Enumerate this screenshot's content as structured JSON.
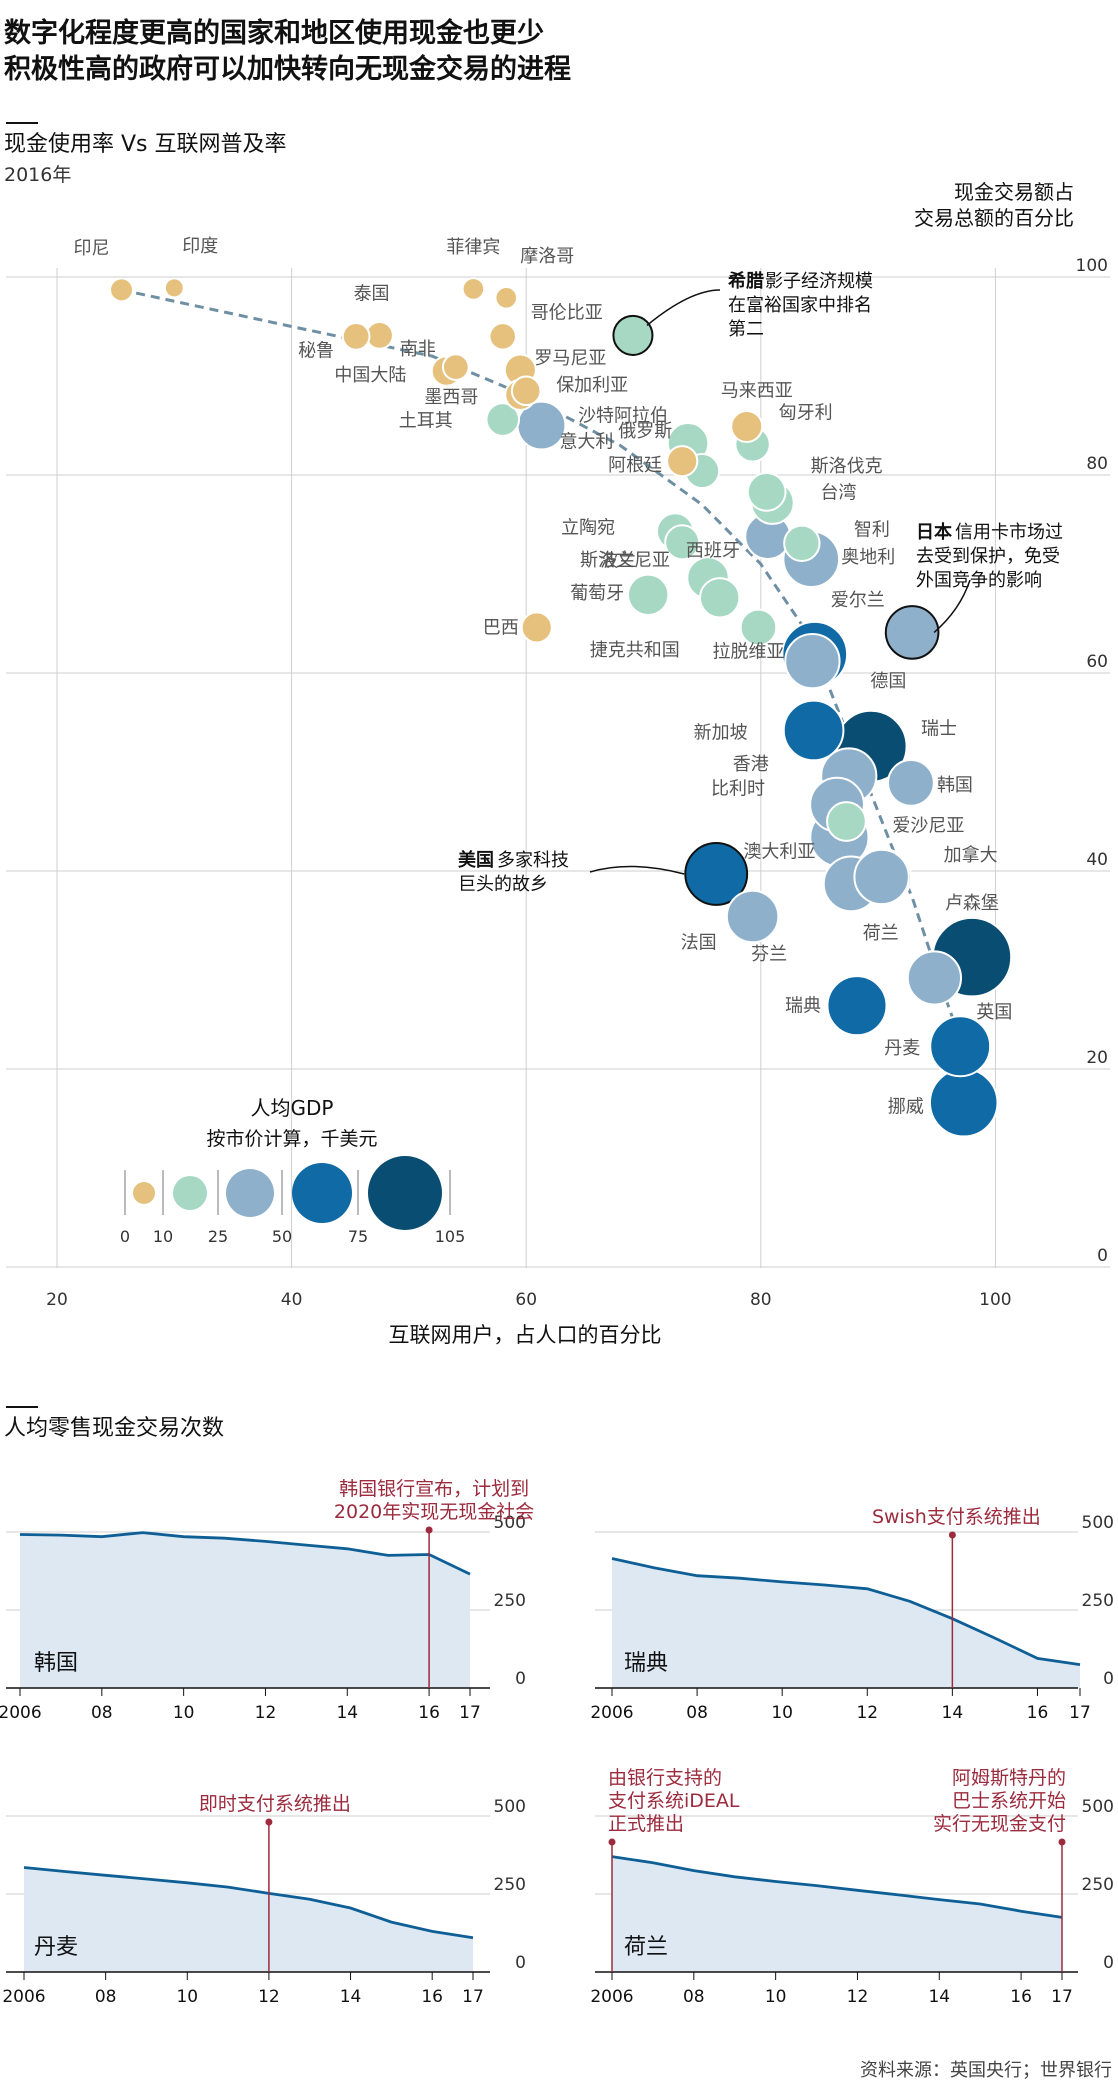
{
  "title_line1": "数字化程度更高的国家和地区使用现金也更少",
  "title_line2": "积极性高的政府可以加快转向无现金交易的进程",
  "source": "资料来源：英国央行；世界银行",
  "scatter": {
    "subtitle": "现金使用率 Vs 互联网普及率",
    "year": "2016年",
    "ylabel_line1": "现金交易额占",
    "ylabel_line2": "交易总额的百分比",
    "xlabel": "互联网用户，占人口的百分比",
    "legend_title": "人均GDP",
    "legend_sub": "按市价计算，千美元",
    "legend_ticks": [
      "0",
      "10",
      "25",
      "50",
      "75",
      "105"
    ],
    "annotations": [
      {
        "bold": "希腊",
        "lines": [
          "影子经济规模",
          "在富裕国家中排名",
          "第二"
        ]
      },
      {
        "bold": "日本",
        "lines": [
          "信用卡市场过",
          "去受到保护，免受",
          "外国竞争的影响"
        ]
      },
      {
        "bold": "美国",
        "lines": [
          "多家科技",
          "巨头的故乡"
        ]
      }
    ]
  },
  "chart_data": [
    {
      "type": "scatter",
      "xlim": [
        15,
        108
      ],
      "ylim": [
        0,
        100
      ],
      "x_ticks": [
        20,
        40,
        60,
        80,
        100
      ],
      "y_ticks": [
        0,
        20,
        40,
        60,
        80,
        100
      ],
      "grid": "horizontal",
      "size_variable": "人均GDP，千美元",
      "trend_line": [
        [
          25.5,
          98.7
        ],
        [
          40,
          95
        ],
        [
          52,
          92
        ],
        [
          60,
          88
        ],
        [
          68,
          83
        ],
        [
          75,
          77
        ],
        [
          80,
          71
        ],
        [
          84,
          64
        ],
        [
          87,
          55
        ],
        [
          90,
          46
        ],
        [
          93,
          37
        ],
        [
          95.5,
          28
        ],
        [
          97.3,
          22
        ]
      ],
      "points": [
        {
          "label": "印尼",
          "x": 25.5,
          "y": 98.7,
          "gdp": 3.6
        },
        {
          "label": "印度",
          "x": 30,
          "y": 98.9,
          "gdp": 1.7
        },
        {
          "label": "菲律宾",
          "x": 55.5,
          "y": 98.8,
          "gdp": 2.9
        },
        {
          "label": "摩洛哥",
          "x": 58.3,
          "y": 97.9,
          "gdp": 2.9
        },
        {
          "label": "泰国",
          "x": 47.5,
          "y": 94.1,
          "gdp": 6
        },
        {
          "label": "哥伦比亚",
          "x": 58,
          "y": 94,
          "gdp": 5.8
        },
        {
          "label": "秘鲁",
          "x": 45.5,
          "y": 94,
          "gdp": 6
        },
        {
          "label": "南非",
          "x": 54,
          "y": 90.9,
          "gdp": 5.3
        },
        {
          "label": "中国大陆",
          "x": 53.2,
          "y": 90.5,
          "gdp": 8.1
        },
        {
          "label": "罗马尼亚",
          "x": 59.5,
          "y": 90.6,
          "gdp": 9.5
        },
        {
          "label": "墨西哥",
          "x": 59.5,
          "y": 88.1,
          "gdp": 8.7
        },
        {
          "label": "保加利亚",
          "x": 60,
          "y": 88.5,
          "gdp": 7.4
        },
        {
          "label": "土耳其",
          "x": 58,
          "y": 85.6,
          "gdp": 10.9
        },
        {
          "label": "意大利",
          "x": 61.3,
          "y": 85,
          "gdp": 30.7
        },
        {
          "label": "马来西亚",
          "x": 78.8,
          "y": 84.9,
          "gdp": 9.5
        },
        {
          "label": "沙特阿拉伯",
          "x": 73.8,
          "y": 83.2,
          "gdp": 20
        },
        {
          "label": "匈牙利",
          "x": 79.3,
          "y": 83.1,
          "gdp": 12.8
        },
        {
          "label": "俄罗斯",
          "x": 73.3,
          "y": 81.4,
          "gdp": 8.7
        },
        {
          "label": "阿根廷",
          "x": 75,
          "y": 80.4,
          "gdp": 12.4
        },
        {
          "label": "斯洛伐克",
          "x": 80.5,
          "y": 78.3,
          "gdp": 16.5
        },
        {
          "label": "台湾",
          "x": 81,
          "y": 77.2,
          "gdp": 22.5
        },
        {
          "label": "智利",
          "x": 83.5,
          "y": 73.1,
          "gdp": 13.8
        },
        {
          "label": "立陶宛",
          "x": 72.7,
          "y": 74.3,
          "gdp": 14.9
        },
        {
          "label": "波兰",
          "x": 73.3,
          "y": 73.2,
          "gdp": 12.4
        },
        {
          "label": "西班牙",
          "x": 80.6,
          "y": 73.8,
          "gdp": 26.6
        },
        {
          "label": "奥地利",
          "x": 84.3,
          "y": 71.5,
          "gdp": 44.7
        },
        {
          "label": "斯洛文尼亚",
          "x": 75.5,
          "y": 69.6,
          "gdp": 21.3
        },
        {
          "label": "葡萄牙",
          "x": 70.4,
          "y": 67.9,
          "gdp": 19.8
        },
        {
          "label": "捷克共和国",
          "x": 76.5,
          "y": 67.6,
          "gdp": 18.5
        },
        {
          "label": "拉脱维亚",
          "x": 79.8,
          "y": 64.6,
          "gdp": 14.1
        },
        {
          "label": "巴西",
          "x": 60.9,
          "y": 64.6,
          "gdp": 8.7
        },
        {
          "label": "爱尔兰",
          "x": 84.6,
          "y": 61.9,
          "gdp": 64.2
        },
        {
          "label": "德国",
          "x": 84.4,
          "y": 61.2,
          "gdp": 42.1
        },
        {
          "label": "瑞士",
          "x": 89.4,
          "y": 52.6,
          "gdp": 79.9
        },
        {
          "label": "新加坡",
          "x": 84.5,
          "y": 54.2,
          "gdp": 52.9
        },
        {
          "label": "香港",
          "x": 87.5,
          "y": 49.6,
          "gdp": 43.7
        },
        {
          "label": "韩国",
          "x": 92.8,
          "y": 48.9,
          "gdp": 27.5
        },
        {
          "label": "比利时",
          "x": 86.5,
          "y": 46.7,
          "gdp": 41.1
        },
        {
          "label": "爱沙尼亚",
          "x": 87.3,
          "y": 45,
          "gdp": 17.7
        },
        {
          "label": "澳大利亚",
          "x": 86.7,
          "y": 43.4,
          "gdp": 49.8
        },
        {
          "label": "加拿大",
          "x": 90.3,
          "y": 39.4,
          "gdp": 42.2
        },
        {
          "label": "荷兰",
          "x": 90.4,
          "y": 39.4,
          "gdp": 45.6
        },
        {
          "label": "芬兰",
          "x": 87.7,
          "y": 38.7,
          "gdp": 43
        },
        {
          "label": "法国",
          "x": 79.3,
          "y": 35.4,
          "gdp": 36.9
        },
        {
          "label": "卢森堡",
          "x": 98,
          "y": 31.3,
          "gdp": 100.7
        },
        {
          "label": "英国",
          "x": 94.8,
          "y": 29.2,
          "gdp": 40
        },
        {
          "label": "瑞典",
          "x": 88.2,
          "y": 26.4,
          "gdp": 51.6
        },
        {
          "label": "丹麦",
          "x": 97,
          "y": 22.3,
          "gdp": 53.4
        },
        {
          "label": "挪威",
          "x": 97.3,
          "y": 16.6,
          "gdp": 70.9
        },
        {
          "label": "希腊",
          "x": 69.1,
          "y": 94.1,
          "gdp": 18.1
        },
        {
          "label": "日本",
          "x": 92.9,
          "y": 64.1,
          "gdp": 38.9
        },
        {
          "label": "美国",
          "x": 76.2,
          "y": 39.7,
          "gdp": 57.6
        }
      ]
    },
    {
      "type": "area",
      "panel": "韩国",
      "ylim": [
        0,
        600
      ],
      "y_ticks": [
        0,
        250,
        500
      ],
      "x": [
        2006,
        2007,
        2008,
        2009,
        2010,
        2011,
        2012,
        2013,
        2014,
        2015,
        2016,
        2017
      ],
      "values": [
        492,
        490,
        485,
        498,
        485,
        480,
        470,
        458,
        446,
        425,
        428,
        365
      ],
      "event": {
        "x": 2016,
        "label_lines": [
          "韩国银行宣布，计划到",
          "2020年实现无现金社会"
        ]
      }
    },
    {
      "type": "area",
      "panel": "瑞典",
      "ylim": [
        0,
        600
      ],
      "y_ticks": [
        0,
        250,
        500
      ],
      "x": [
        2006,
        2007,
        2008,
        2009,
        2010,
        2011,
        2012,
        2013,
        2014,
        2015,
        2016,
        2017
      ],
      "values": [
        415,
        385,
        360,
        352,
        340,
        330,
        318,
        278,
        222,
        160,
        95,
        75
      ],
      "event": {
        "x": 2014,
        "label_lines": [
          "Swish支付系统推出"
        ]
      }
    },
    {
      "type": "area",
      "panel": "丹麦",
      "ylim": [
        0,
        600
      ],
      "y_ticks": [
        0,
        250,
        500
      ],
      "x": [
        2006,
        2007,
        2008,
        2009,
        2010,
        2011,
        2012,
        2013,
        2014,
        2015,
        2016,
        2017
      ],
      "values": [
        335,
        322,
        310,
        298,
        286,
        272,
        252,
        233,
        205,
        160,
        130,
        110
      ],
      "event": {
        "x": 2012,
        "label_lines": [
          "即时支付系统推出"
        ]
      }
    },
    {
      "type": "area",
      "panel": "荷兰",
      "ylim": [
        0,
        600
      ],
      "y_ticks": [
        0,
        250,
        500
      ],
      "x": [
        2006,
        2007,
        2008,
        2009,
        2010,
        2011,
        2012,
        2013,
        2014,
        2015,
        2016,
        2017
      ],
      "values": [
        370,
        350,
        325,
        305,
        290,
        277,
        262,
        247,
        232,
        218,
        195,
        175
      ],
      "event": {
        "x": 2006,
        "label_lines": [
          "由银行支持的",
          "支付系统iDEAL",
          "正式推出"
        ]
      },
      "event2": {
        "x": 2017,
        "label_lines": [
          "阿姆斯特丹的",
          "巴士系统开始",
          "实行无现金支付"
        ]
      }
    }
  ],
  "small_multiples": {
    "subtitle": "人均零售现金交易次数",
    "x_ticks": [
      "2006",
      "08",
      "10",
      "12",
      "14",
      "16",
      "17"
    ],
    "x_tick_years": [
      2006,
      2008,
      2010,
      2012,
      2014,
      2016,
      2017
    ]
  },
  "colors": {
    "gdp_0_10": "#e6c17e",
    "gdp_10_25": "#a6d8c3",
    "gdp_25_50": "#8fb0cb",
    "gdp_50_75": "#0f6aa6",
    "gdp_75_plus": "#0a4d73",
    "trend": "#6f8fa3",
    "area_fill": "#dde8f2",
    "line": "#0f5f97",
    "event": "#9c2b3d",
    "grid": "#cfcfcf"
  }
}
